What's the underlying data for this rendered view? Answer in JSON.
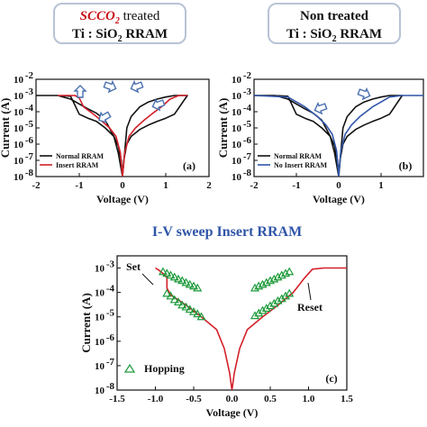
{
  "colors": {
    "black": "#111111",
    "red": "#d4202a",
    "blue": "#2f55a8",
    "green": "#1c9a3a",
    "title_box": "#b7c3d6",
    "accent_text": "#c8151b",
    "arrow_fill": "#ffffff",
    "arrow_stroke": "#4a6fb0"
  },
  "chart_data": [
    {
      "type": "line",
      "title_accent": "SCCO",
      "title_accent_sub": "2",
      "title_rest": " treated",
      "subtitle_parts": [
        "Ti : SiO",
        "2",
        " RRAM"
      ],
      "panel_label": "(a)",
      "xlabel": "Voltage (V)",
      "ylabel": "Current (A)",
      "xlim": [
        -2,
        2
      ],
      "ylim_log10": [
        -8,
        -2
      ],
      "x_ticks": [
        "-2",
        "-1",
        "0",
        "1",
        "2"
      ],
      "y_ticks": [
        {
          "base": "10",
          "exp": "-8"
        },
        {
          "base": "10",
          "exp": "-7"
        },
        {
          "base": "10",
          "exp": "-6"
        },
        {
          "base": "10",
          "exp": "-5"
        },
        {
          "base": "10",
          "exp": "-4"
        },
        {
          "base": "10",
          "exp": "-3"
        },
        {
          "base": "10",
          "exp": "-2"
        }
      ],
      "legend": [
        "Normal RRAM",
        "Insert RRAM"
      ],
      "series": [
        {
          "name": "Normal RRAM",
          "color": "black",
          "x": [
            -2,
            -1.5,
            -1.2,
            -1.0,
            -0.8,
            -0.6,
            -0.4,
            -0.2,
            -0.1,
            -0.03,
            0,
            0.03,
            0.1,
            0.2,
            0.4,
            0.6,
            0.8,
            1.0,
            1.2,
            1.5,
            1.2,
            1.0,
            0.8,
            0.6,
            0.4,
            0.2,
            0.1,
            0,
            -0.1,
            -0.2,
            -0.4,
            -0.6,
            -0.8,
            -1.0,
            -1.2,
            -1.5,
            -2
          ],
          "y": [
            0.001,
            0.001,
            0.0009,
            7e-05,
            4e-05,
            2.5e-05,
            1e-05,
            3e-06,
            8e-07,
            1e-07,
            1e-08,
            1e-07,
            1e-06,
            3e-06,
            8e-06,
            1.5e-05,
            2.5e-05,
            4e-05,
            7e-05,
            0.001,
            0.001,
            0.0008,
            0.0006,
            0.0004,
            0.0002,
            5e-05,
            1e-05,
            1e-08,
            3e-07,
            3e-06,
            3e-05,
            8e-05,
            0.00015,
            0.0003,
            0.0006,
            0.001,
            0.001
          ]
        },
        {
          "name": "Insert RRAM",
          "color": "red",
          "x": [
            -1.5,
            -1.1,
            -1.0,
            -0.9,
            -0.7,
            -0.5,
            -0.3,
            -0.15,
            -0.05,
            0,
            0.05,
            0.15,
            0.3,
            0.5,
            0.7,
            0.9,
            1.1,
            1.3,
            1.5
          ],
          "y": [
            0.001,
            0.001,
            0.0007,
            0.0002,
            8e-05,
            3e-05,
            1e-05,
            3e-06,
            3e-07,
            1e-08,
            3e-07,
            3e-06,
            1e-05,
            3e-05,
            8e-05,
            0.0002,
            0.0006,
            0.001,
            0.001
          ]
        }
      ]
    },
    {
      "type": "line",
      "title": "Non treated",
      "subtitle_parts": [
        "Ti : SiO",
        "2",
        " RRAM"
      ],
      "panel_label": "(b)",
      "xlabel": "Voltage (V)",
      "ylabel": "Current (A)",
      "xlim": [
        -2,
        2
      ],
      "ylim_log10": [
        -8,
        -2
      ],
      "x_ticks": [
        "-2",
        "-1",
        "0",
        "1"
      ],
      "y_ticks": [
        {
          "base": "10",
          "exp": "-8"
        },
        {
          "base": "10",
          "exp": "-7"
        },
        {
          "base": "10",
          "exp": "-6"
        },
        {
          "base": "10",
          "exp": "-5"
        },
        {
          "base": "10",
          "exp": "-4"
        },
        {
          "base": "10",
          "exp": "-3"
        },
        {
          "base": "10",
          "exp": "-2"
        }
      ],
      "legend": [
        "Normal RRAM",
        "No Insert RRAM"
      ],
      "series": [
        {
          "name": "Normal RRAM",
          "color": "black",
          "x": [
            -2,
            -1.5,
            -1.2,
            -1.0,
            -0.8,
            -0.6,
            -0.4,
            -0.2,
            -0.1,
            -0.03,
            0,
            0.03,
            0.1,
            0.2,
            0.4,
            0.6,
            0.8,
            1.0,
            1.2,
            1.5,
            1.2,
            1.0,
            0.8,
            0.6,
            0.4,
            0.2,
            0.1,
            0,
            -0.1,
            -0.2,
            -0.4,
            -0.6,
            -0.8,
            -1.0,
            -1.2,
            -1.5,
            -2
          ],
          "y": [
            0.001,
            0.001,
            0.0009,
            7e-05,
            4e-05,
            2.5e-05,
            1e-05,
            3e-06,
            8e-07,
            1e-07,
            1e-08,
            1e-07,
            1e-06,
            3e-06,
            8e-06,
            1.5e-05,
            2.5e-05,
            4e-05,
            7e-05,
            0.001,
            0.001,
            0.0008,
            0.0006,
            0.0004,
            0.0002,
            5e-05,
            1e-05,
            1e-08,
            3e-07,
            3e-06,
            3e-05,
            8e-05,
            0.00015,
            0.0003,
            0.0006,
            0.001,
            0.001
          ]
        },
        {
          "name": "No Insert RRAM",
          "color": "blue",
          "x": [
            -2,
            -1.2,
            -0.8,
            -0.5,
            -0.3,
            -0.15,
            -0.05,
            0,
            0.05,
            0.15,
            0.3,
            0.5,
            0.8,
            1.0,
            1.2,
            1.5,
            2.0
          ],
          "y": [
            0.001,
            0.0008,
            0.0002,
            5e-05,
            1.5e-05,
            4e-06,
            4e-07,
            1e-08,
            4e-07,
            4e-06,
            1.5e-05,
            5e-05,
            0.0002,
            0.0004,
            0.0008,
            0.001,
            0.001
          ]
        }
      ]
    },
    {
      "type": "line",
      "title": "I-V sweep Insert RRAM",
      "panel_label": "(c)",
      "xlabel": "Voltage (V)",
      "ylabel": "Current (A)",
      "xlim": [
        -1.5,
        1.5
      ],
      "ylim_log10": [
        -8,
        -2.5
      ],
      "x_ticks": [
        "-1.5",
        "-1.0",
        "-0.5",
        "0.0",
        "0.5",
        "1.0",
        "1.5"
      ],
      "y_ticks": [
        {
          "base": "10",
          "exp": "-8"
        },
        {
          "base": "10",
          "exp": "-7"
        },
        {
          "base": "10",
          "exp": "-6"
        },
        {
          "base": "10",
          "exp": "-5"
        },
        {
          "base": "10",
          "exp": "-4"
        },
        {
          "base": "10",
          "exp": "-3"
        }
      ],
      "annotations": [
        "Set",
        "Reset"
      ],
      "legend": [
        "Hopping"
      ],
      "series": [
        {
          "name": "curve",
          "color": "red",
          "x": [
            -1.0,
            -0.95,
            -0.9,
            -0.85,
            -0.85,
            -0.8,
            -0.6,
            -0.4,
            -0.2,
            -0.1,
            -0.03,
            0,
            0.03,
            0.1,
            0.2,
            0.4,
            0.6,
            0.8,
            0.95,
            1.05,
            1.2,
            1.5
          ],
          "y": [
            0.001,
            0.0008,
            0.0006,
            0.0004,
            0.00015,
            8e-05,
            3e-05,
            1e-05,
            3e-06,
            5e-07,
            5e-08,
            1e-08,
            5e-08,
            5e-07,
            3e-06,
            1e-05,
            3e-05,
            0.0001,
            0.0004,
            0.0009,
            0.001,
            0.001
          ]
        },
        {
          "name": "Hopping",
          "color": "green",
          "marker": "triangle",
          "x": [
            -0.9,
            -0.85,
            -0.8,
            -0.75,
            -0.7,
            -0.65,
            -0.6,
            -0.55,
            -0.5,
            -0.45,
            -0.85,
            -0.8,
            -0.75,
            -0.7,
            -0.65,
            -0.6,
            -0.55,
            -0.5,
            -0.45,
            -0.4,
            0.3,
            0.35,
            0.4,
            0.45,
            0.5,
            0.55,
            0.6,
            0.65,
            0.7,
            0.75,
            0.3,
            0.35,
            0.4,
            0.45,
            0.5,
            0.55,
            0.6,
            0.65,
            0.7,
            0.75
          ],
          "y": [
            0.0007,
            0.0006,
            0.0005,
            0.00042,
            0.00035,
            0.0003,
            0.00025,
            0.00021,
            0.00018,
            0.00015,
            9e-05,
            7e-05,
            5e-05,
            4e-05,
            3e-05,
            2.5e-05,
            2e-05,
            1.6e-05,
            1.3e-05,
            1e-05,
            0.00015,
            0.00018,
            0.00021,
            0.00025,
            0.0003,
            0.00035,
            0.00042,
            0.0005,
            0.0006,
            0.0007,
            1.1e-05,
            1.4e-05,
            1.8e-05,
            2.2e-05,
            2.8e-05,
            3.5e-05,
            4.5e-05,
            5.5e-05,
            7e-05,
            9e-05
          ]
        }
      ]
    }
  ]
}
